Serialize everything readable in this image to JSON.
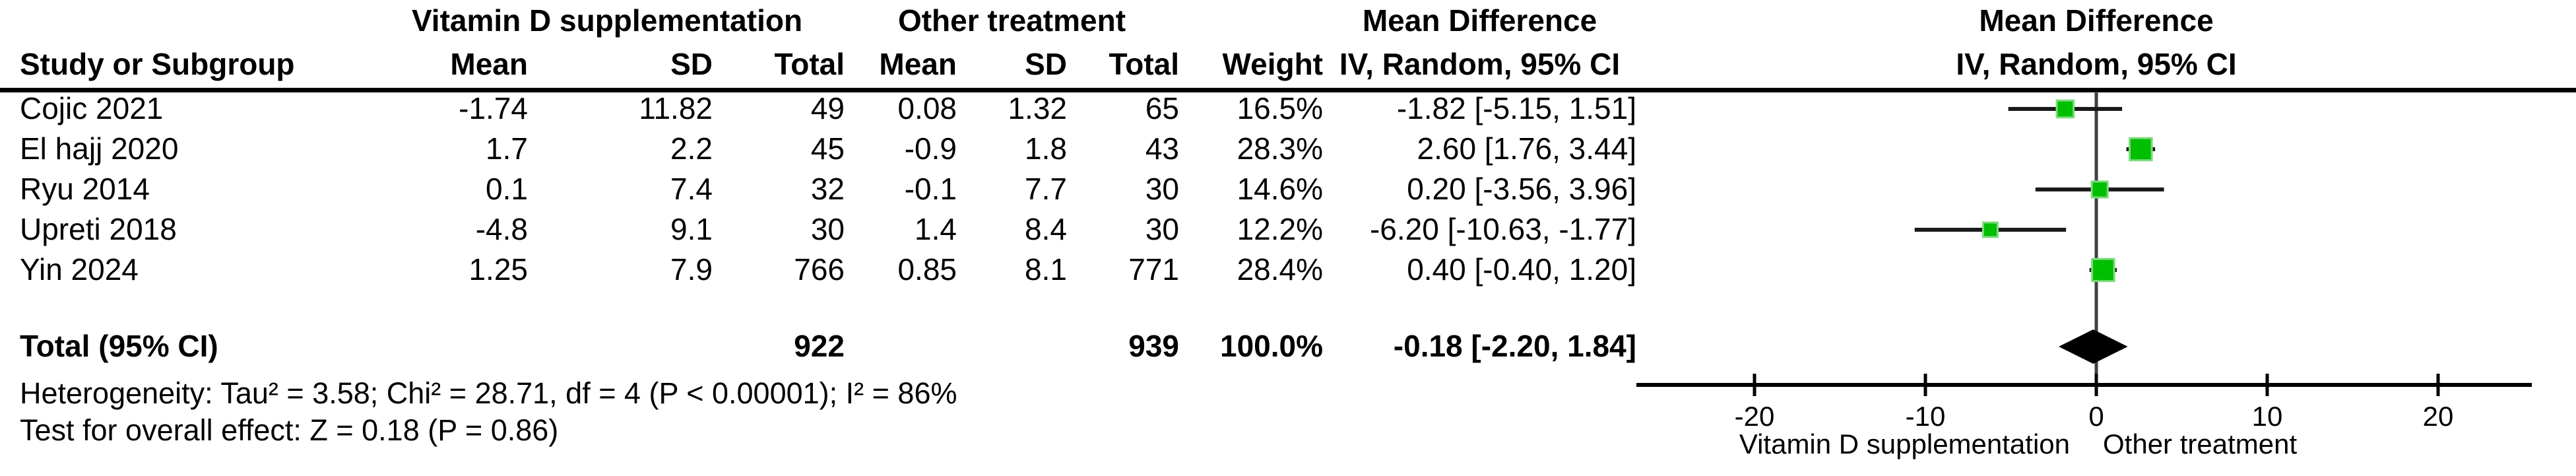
{
  "table": {
    "group1_header": "Vitamin D supplementation",
    "group2_header": "Other treatment",
    "md_header_left": "Mean Difference",
    "md_header_right": "Mean Difference",
    "col_headers": {
      "study": "Study or Subgroup",
      "mean1": "Mean",
      "sd1": "SD",
      "total1": "Total",
      "mean2": "Mean",
      "sd2": "SD",
      "total2": "Total",
      "weight": "Weight",
      "ci_left": "IV, Random, 95% CI",
      "ci_right": "IV, Random, 95% CI"
    },
    "rows": [
      {
        "study": "Cojic 2021",
        "mean1": "-1.74",
        "sd1": "11.82",
        "total1": "49",
        "mean2": "0.08",
        "sd2": "1.32",
        "total2": "65",
        "weight": "16.5%",
        "ci": "-1.82 [-5.15, 1.51]"
      },
      {
        "study": "El hajj 2020",
        "mean1": "1.7",
        "sd1": "2.2",
        "total1": "45",
        "mean2": "-0.9",
        "sd2": "1.8",
        "total2": "43",
        "weight": "28.3%",
        "ci": "2.60 [1.76, 3.44]"
      },
      {
        "study": "Ryu 2014",
        "mean1": "0.1",
        "sd1": "7.4",
        "total1": "32",
        "mean2": "-0.1",
        "sd2": "7.7",
        "total2": "30",
        "weight": "14.6%",
        "ci": "0.20 [-3.56, 3.96]"
      },
      {
        "study": "Upreti 2018",
        "mean1": "-4.8",
        "sd1": "9.1",
        "total1": "30",
        "mean2": "1.4",
        "sd2": "8.4",
        "total2": "30",
        "weight": "12.2%",
        "ci": "-6.20 [-10.63, -1.77]"
      },
      {
        "study": "Yin 2024",
        "mean1": "1.25",
        "sd1": "7.9",
        "total1": "766",
        "mean2": "0.85",
        "sd2": "8.1",
        "total2": "771",
        "weight": "28.4%",
        "ci": "0.40 [-0.40, 1.20]"
      }
    ],
    "total_row": {
      "label": "Total (95% CI)",
      "total1": "922",
      "total2": "939",
      "weight": "100.0%",
      "ci": "-0.18 [-2.20, 1.84]"
    },
    "heterogeneity": "Heterogeneity: Tau² = 3.58; Chi² = 28.71, df = 4 (P < 0.00001); I² = 86%",
    "overall_effect": "Test for overall effect: Z = 0.18 (P = 0.86)"
  },
  "chart_data": {
    "type": "forest",
    "effect_measure": "Mean Difference, IV, Random, 95% CI",
    "x_ticks": [
      -20,
      -10,
      0,
      10,
      20
    ],
    "xlim": [
      -27,
      25.5
    ],
    "zero_line_x": 0,
    "favours_left_label": "Vitamin D supplementation",
    "favours_right_label": "Other treatment",
    "studies": [
      {
        "name": "Cojic 2021",
        "md": -1.82,
        "ci_low": -5.15,
        "ci_high": 1.51,
        "weight": 16.5
      },
      {
        "name": "El hajj 2020",
        "md": 2.6,
        "ci_low": 1.76,
        "ci_high": 3.44,
        "weight": 28.3
      },
      {
        "name": "Ryu 2014",
        "md": 0.2,
        "ci_low": -3.56,
        "ci_high": 3.96,
        "weight": 14.6
      },
      {
        "name": "Upreti 2018",
        "md": -6.2,
        "ci_low": -10.63,
        "ci_high": -1.77,
        "weight": 12.2
      },
      {
        "name": "Yin 2024",
        "md": 0.4,
        "ci_low": -0.4,
        "ci_high": 1.2,
        "weight": 28.4
      }
    ],
    "total": {
      "md": -0.18,
      "ci_low": -2.2,
      "ci_high": 1.84
    },
    "colors": {
      "marker_fill": "#00BE00",
      "marker_edge": "#7CDC7C",
      "ci_line": "#1a1a1a",
      "zero_line": "#3F3F3F",
      "axis": "#000000",
      "diamond": "#000000",
      "text": "#000000"
    }
  }
}
